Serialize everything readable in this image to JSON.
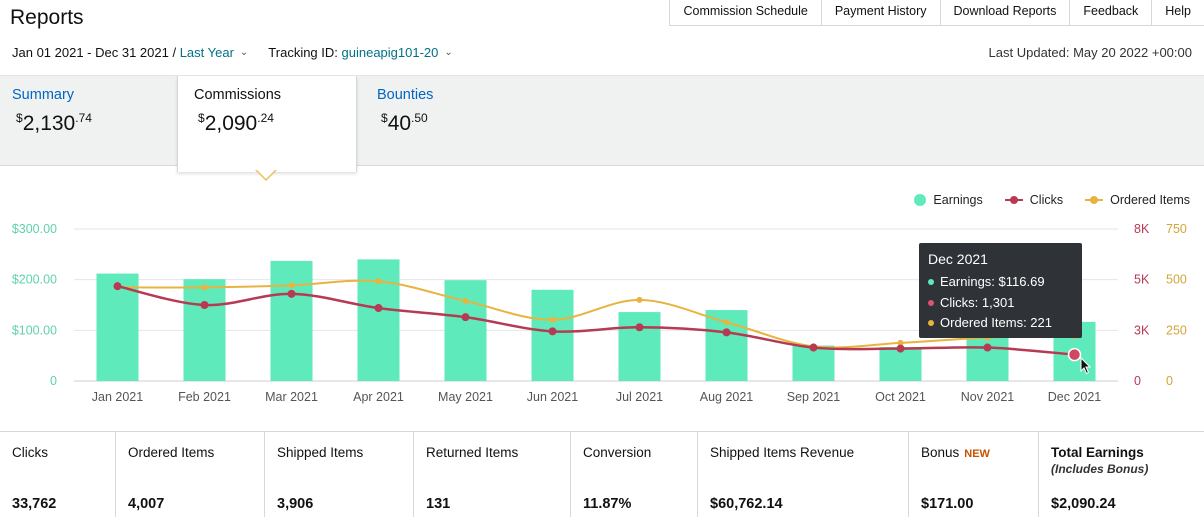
{
  "page_title": "Reports",
  "top_nav": [
    "Commission Schedule",
    "Payment History",
    "Download Reports",
    "Feedback",
    "Help"
  ],
  "filters": {
    "date_range": "Jan 01 2021 - Dec 31 2021 /",
    "period": "Last Year",
    "tracking_label": "Tracking ID:",
    "tracking_id": "guineapig101-20"
  },
  "last_updated": "Last Updated: May 20 2022 +00:00",
  "tabs": [
    {
      "label": "Summary",
      "currency": "$",
      "whole": "2,130",
      "cents": ".74"
    },
    {
      "label": "Commissions",
      "currency": "$",
      "whole": "2,090",
      "cents": ".24"
    },
    {
      "label": "Bounties",
      "currency": "$",
      "whole": "40",
      "cents": ".50"
    }
  ],
  "colors": {
    "earnings": "#5eeabb",
    "clicks": "#b63a52",
    "ordered_items": "#e8b33f",
    "link": "#0066c0"
  },
  "chart_data": {
    "type": "bar",
    "categories": [
      "Jan 2021",
      "Feb 2021",
      "Mar 2021",
      "Apr 2021",
      "May 2021",
      "Jun 2021",
      "Jul 2021",
      "Aug 2021",
      "Sep 2021",
      "Oct 2021",
      "Nov 2021",
      "Dec 2021"
    ],
    "series": [
      {
        "name": "Earnings",
        "type": "bar",
        "axis": "left",
        "values": [
          212,
          201,
          237,
          240,
          199,
          180,
          136,
          140,
          70,
          67,
          92,
          116.69
        ]
      },
      {
        "name": "Clicks",
        "type": "line",
        "axis": "right-1",
        "values": [
          4680,
          3750,
          4300,
          3600,
          3150,
          2450,
          2650,
          2400,
          1650,
          1600,
          1650,
          1301
        ]
      },
      {
        "name": "Ordered Items",
        "type": "line",
        "axis": "right-2",
        "values": [
          462,
          462,
          472,
          492,
          395,
          302,
          400,
          290,
          171,
          188,
          214,
          221
        ]
      }
    ],
    "y_left": {
      "ticks": [
        "$300.00",
        "$200.00",
        "$100.00",
        "0"
      ],
      "range": [
        0,
        300
      ]
    },
    "y_right_1": {
      "ticks": [
        "8K",
        "5K",
        "3K",
        "0"
      ],
      "range": [
        0,
        7500
      ]
    },
    "y_right_2": {
      "ticks": [
        "750",
        "500",
        "250",
        "0"
      ],
      "range": [
        0,
        750
      ]
    },
    "legend": [
      "Earnings",
      "Clicks",
      "Ordered Items"
    ],
    "legend_position": "top-right",
    "grid": true
  },
  "tooltip": {
    "title": "Dec 2021",
    "rows": [
      "Earnings: $116.69",
      "Clicks: 1,301",
      "Ordered Items: 221"
    ]
  },
  "stats": [
    {
      "label": "Clicks",
      "value": "33,762"
    },
    {
      "label": "Ordered Items",
      "value": "4,007"
    },
    {
      "label": "Shipped Items",
      "value": "3,906"
    },
    {
      "label": "Returned Items",
      "value": "131"
    },
    {
      "label": "Conversion",
      "value": "11.87%"
    },
    {
      "label": "Shipped Items Revenue",
      "value": "$60,762.14"
    },
    {
      "label": "Bonus",
      "badge": "NEW",
      "value": "$171.00"
    },
    {
      "label": "Total Earnings",
      "sub": "(Includes Bonus)",
      "value": "$2,090.24"
    }
  ]
}
